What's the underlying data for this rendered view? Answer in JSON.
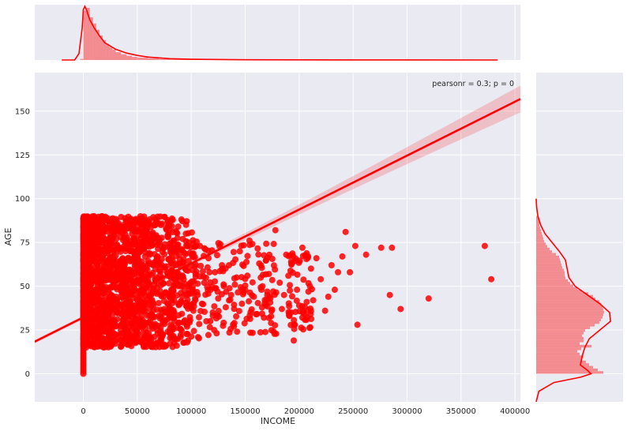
{
  "chart_data": {
    "type": "scatter",
    "title": "",
    "xlabel": "INCOME",
    "ylabel": "AGE",
    "xlim": [
      -45000,
      405000
    ],
    "ylim": [
      -16,
      172
    ],
    "xticks": [
      0,
      50000,
      100000,
      150000,
      200000,
      250000,
      300000,
      350000,
      400000
    ],
    "yticks": [
      0,
      25,
      50,
      75,
      100,
      125,
      150
    ],
    "xtick_labels": [
      "0",
      "50000",
      "100000",
      "150000",
      "200000",
      "250000",
      "300000",
      "350000",
      "400000"
    ],
    "ytick_labels": [
      "0",
      "25",
      "50",
      "75",
      "100",
      "125",
      "150"
    ],
    "annotation": "pearsonr = 0.3; p = 0",
    "color": "#ff0000",
    "background": "#eaeaf2",
    "grid": true,
    "regression": {
      "slope": 0.000308,
      "intercept": 32.2
    },
    "dense_region": {
      "x_range": [
        0,
        90000
      ],
      "y_range": [
        15,
        90
      ]
    },
    "outliers": [
      [
        372000,
        73
      ],
      [
        378000,
        54
      ],
      [
        320000,
        43
      ],
      [
        294000,
        37
      ],
      [
        286000,
        72
      ],
      [
        284000,
        45
      ],
      [
        276000,
        72
      ],
      [
        262000,
        68
      ],
      [
        254000,
        28
      ],
      [
        252000,
        73
      ],
      [
        247000,
        58
      ],
      [
        243000,
        81
      ],
      [
        240000,
        67
      ],
      [
        236000,
        58
      ],
      [
        233000,
        48
      ],
      [
        230000,
        62
      ],
      [
        227000,
        44
      ],
      [
        224000,
        36
      ],
      [
        220000,
        54
      ],
      [
        216000,
        66
      ],
      [
        213000,
        42
      ],
      [
        210000,
        50
      ],
      [
        207000,
        41
      ],
      [
        205000,
        34
      ],
      [
        203000,
        72
      ],
      [
        200000,
        39
      ],
      [
        198000,
        48
      ],
      [
        196000,
        28
      ],
      [
        195000,
        19
      ],
      [
        193000,
        63
      ],
      [
        190000,
        56
      ],
      [
        188000,
        68
      ],
      [
        186000,
        45
      ],
      [
        184000,
        37
      ],
      [
        182000,
        52
      ],
      [
        178000,
        82
      ],
      [
        176000,
        47
      ],
      [
        174000,
        29
      ],
      [
        172000,
        57
      ],
      [
        168000,
        40
      ],
      [
        166000,
        50
      ],
      [
        163000,
        63
      ],
      [
        160000,
        34
      ],
      [
        158000,
        44
      ],
      [
        154000,
        76
      ],
      [
        152000,
        56
      ],
      [
        150000,
        48
      ],
      [
        147000,
        40
      ],
      [
        145000,
        70
      ],
      [
        142000,
        55
      ],
      [
        140000,
        29
      ],
      [
        137000,
        45
      ],
      [
        135000,
        62
      ],
      [
        132000,
        38
      ],
      [
        130000,
        51
      ],
      [
        127000,
        74
      ],
      [
        125000,
        43
      ],
      [
        122000,
        58
      ],
      [
        120000,
        35
      ],
      [
        118000,
        48
      ],
      [
        116000,
        66
      ],
      [
        114000,
        30
      ],
      [
        112000,
        52
      ],
      [
        110000,
        40
      ],
      [
        108000,
        73
      ],
      [
        106000,
        45
      ],
      [
        104000,
        57
      ],
      [
        102000,
        36
      ],
      [
        100000,
        62
      ],
      [
        98000,
        47
      ],
      [
        96000,
        28
      ],
      [
        95000,
        80
      ],
      [
        93000,
        54
      ],
      [
        91000,
        41
      ],
      [
        89000,
        68
      ],
      [
        97000,
        19
      ]
    ],
    "top_hist": {
      "bin_edges": [
        -3000,
        0,
        3000,
        6000,
        9000,
        12000,
        15000,
        18000,
        21000,
        24000,
        27000,
        30000,
        35000,
        40000,
        45000,
        50000,
        60000,
        70000,
        80000,
        100000,
        130000,
        170000,
        220000,
        380000
      ],
      "density": [
        0.02,
        0.95,
        1.0,
        0.82,
        0.7,
        0.58,
        0.47,
        0.38,
        0.31,
        0.25,
        0.2,
        0.15,
        0.11,
        0.08,
        0.06,
        0.045,
        0.03,
        0.018,
        0.012,
        0.007,
        0.004,
        0.002,
        0.001
      ]
    },
    "top_kde": {
      "x": [
        -20000,
        -8000,
        -4000,
        -1000,
        0,
        1500,
        3000,
        6000,
        10000,
        15000,
        20000,
        30000,
        40000,
        50000,
        60000,
        80000,
        100000,
        150000,
        200000,
        250000,
        300000,
        384000
      ],
      "y": [
        0,
        0.002,
        0.12,
        0.6,
        0.94,
        1.0,
        0.93,
        0.75,
        0.6,
        0.45,
        0.32,
        0.2,
        0.13,
        0.085,
        0.055,
        0.025,
        0.013,
        0.005,
        0.003,
        0.002,
        0.001,
        0.0
      ]
    },
    "right_hist": {
      "bin_width": 1.5,
      "bins": [
        [
          0,
          0.85
        ],
        [
          1.5,
          0.78
        ],
        [
          3,
          0.72
        ],
        [
          4.5,
          0.67
        ],
        [
          6,
          0.63
        ],
        [
          7.5,
          0.58
        ],
        [
          9,
          0.6
        ],
        [
          10.5,
          0.55
        ],
        [
          12,
          0.52
        ],
        [
          13.5,
          0.57
        ],
        [
          15,
          0.7
        ],
        [
          16.5,
          0.55
        ],
        [
          18,
          0.6
        ],
        [
          19.5,
          0.6
        ],
        [
          21,
          0.58
        ],
        [
          22.5,
          0.6
        ],
        [
          24,
          0.62
        ],
        [
          25.5,
          0.68
        ],
        [
          27,
          0.74
        ],
        [
          28.5,
          0.8
        ],
        [
          30,
          0.82
        ],
        [
          31.5,
          0.84
        ],
        [
          33,
          0.85
        ],
        [
          34.5,
          0.86
        ],
        [
          36,
          0.85
        ],
        [
          37.5,
          0.84
        ],
        [
          39,
          0.82
        ],
        [
          40.5,
          0.8
        ],
        [
          42,
          0.75
        ],
        [
          43.5,
          0.72
        ],
        [
          45,
          0.66
        ],
        [
          46.5,
          0.58
        ],
        [
          48,
          0.52
        ],
        [
          49.5,
          0.47
        ],
        [
          51,
          0.43
        ],
        [
          52.5,
          0.4
        ],
        [
          54,
          0.37
        ],
        [
          55.5,
          0.36
        ],
        [
          57,
          0.36
        ],
        [
          58.5,
          0.35
        ],
        [
          60,
          0.33
        ],
        [
          61.5,
          0.32
        ],
        [
          63,
          0.31
        ],
        [
          64.5,
          0.3
        ],
        [
          66,
          0.29
        ],
        [
          67.5,
          0.25
        ],
        [
          69,
          0.2
        ],
        [
          70.5,
          0.17
        ],
        [
          72,
          0.14
        ],
        [
          73.5,
          0.12
        ],
        [
          75,
          0.1
        ],
        [
          76.5,
          0.09
        ],
        [
          78,
          0.08
        ],
        [
          79.5,
          0.07
        ],
        [
          81,
          0.06
        ],
        [
          82.5,
          0.05
        ],
        [
          84,
          0.04
        ],
        [
          85.5,
          0.04
        ],
        [
          87,
          0.03
        ],
        [
          88.5,
          0.03
        ]
      ]
    },
    "right_kde": {
      "y": [
        -16,
        -10,
        -5,
        -2,
        0,
        2,
        5,
        10,
        15,
        20,
        25,
        30,
        35,
        40,
        45,
        50,
        55,
        60,
        65,
        70,
        75,
        80,
        85,
        90,
        95,
        100
      ],
      "density": [
        0,
        0.03,
        0.2,
        0.5,
        0.62,
        0.58,
        0.5,
        0.52,
        0.55,
        0.6,
        0.72,
        0.84,
        0.83,
        0.72,
        0.58,
        0.44,
        0.37,
        0.35,
        0.33,
        0.26,
        0.18,
        0.1,
        0.05,
        0.02,
        0.005,
        0
      ]
    }
  }
}
